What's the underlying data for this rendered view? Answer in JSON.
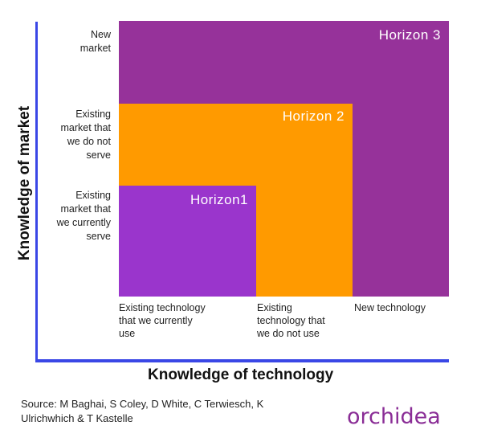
{
  "axes": {
    "y_title": "Knowledge of market",
    "x_title": "Knowledge of technology"
  },
  "y_levels": [
    {
      "lines": [
        "New",
        "market"
      ]
    },
    {
      "lines": [
        "Existing",
        "market that",
        "we do not",
        "serve"
      ]
    },
    {
      "lines": [
        "Existing",
        "market that",
        "we currently",
        "serve"
      ]
    }
  ],
  "x_levels": [
    {
      "lines": [
        "Existing technology",
        "that we currently",
        "use"
      ]
    },
    {
      "lines": [
        "Existing",
        "technology that",
        "we do not use"
      ]
    },
    {
      "lines": [
        "New technology"
      ]
    }
  ],
  "horizons": [
    {
      "label": "Horizon1",
      "color": "#9a35cc"
    },
    {
      "label": "Horizon 2",
      "color": "#ff9a00"
    },
    {
      "label": "Horizon 3",
      "color": "#96329a"
    }
  ],
  "source": {
    "lines": [
      "Source: M Baghai, S Coley, D White, C Terwiesch, K",
      "Ulrichwhich & T Kastelle"
    ]
  },
  "logo": {
    "text": "orchidea",
    "color": "#8a2d96"
  }
}
